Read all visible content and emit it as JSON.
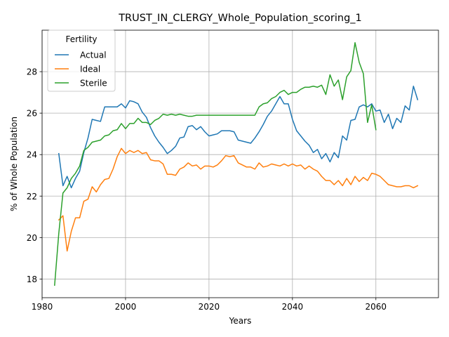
{
  "chart_data": {
    "type": "line",
    "title": "TRUST_IN_CLERGY_Whole_Population_scoring_1",
    "xlabel": "Years",
    "ylabel": "% of Whole Population",
    "xlim": [
      1980,
      2075
    ],
    "ylim": [
      17.1,
      30.0
    ],
    "xticks": [
      1980,
      2000,
      2020,
      2040,
      2060
    ],
    "yticks": [
      18,
      20,
      22,
      24,
      26,
      28
    ],
    "grid": true,
    "legend": {
      "title": "Fertility",
      "placement": "top-left"
    },
    "series": [
      {
        "name": "Actual",
        "color": "#1f77b4",
        "points": [
          [
            1984,
            24.05
          ],
          [
            1985,
            22.5
          ],
          [
            1986,
            22.95
          ],
          [
            1987,
            22.4
          ],
          [
            1988,
            22.85
          ],
          [
            1989,
            23.2
          ],
          [
            1990,
            24.1
          ],
          [
            1991,
            24.8
          ],
          [
            1992,
            25.7
          ],
          [
            1993,
            25.65
          ],
          [
            1994,
            25.6
          ],
          [
            1995,
            26.3
          ],
          [
            1996,
            26.3
          ],
          [
            1997,
            26.3
          ],
          [
            1998,
            26.3
          ],
          [
            1999,
            26.45
          ],
          [
            2000,
            26.25
          ],
          [
            2001,
            26.6
          ],
          [
            2002,
            26.55
          ],
          [
            2003,
            26.45
          ],
          [
            2004,
            26.05
          ],
          [
            2005,
            25.8
          ],
          [
            2006,
            25.3
          ],
          [
            2007,
            24.9
          ],
          [
            2008,
            24.6
          ],
          [
            2009,
            24.35
          ],
          [
            2010,
            24.05
          ],
          [
            2011,
            24.2
          ],
          [
            2012,
            24.4
          ],
          [
            2013,
            24.8
          ],
          [
            2014,
            24.85
          ],
          [
            2015,
            25.35
          ],
          [
            2016,
            25.4
          ],
          [
            2017,
            25.2
          ],
          [
            2018,
            25.35
          ],
          [
            2019,
            25.1
          ],
          [
            2020,
            24.9
          ],
          [
            2021,
            24.95
          ],
          [
            2022,
            25.0
          ],
          [
            2023,
            25.15
          ],
          [
            2024,
            25.15
          ],
          [
            2025,
            25.15
          ],
          [
            2026,
            25.1
          ],
          [
            2027,
            24.7
          ],
          [
            2028,
            24.65
          ],
          [
            2029,
            24.6
          ],
          [
            2030,
            24.55
          ],
          [
            2031,
            24.8
          ],
          [
            2032,
            25.1
          ],
          [
            2033,
            25.45
          ],
          [
            2034,
            25.85
          ],
          [
            2035,
            26.1
          ],
          [
            2036,
            26.45
          ],
          [
            2037,
            26.8
          ],
          [
            2038,
            26.45
          ],
          [
            2039,
            26.45
          ],
          [
            2040,
            25.7
          ],
          [
            2041,
            25.15
          ],
          [
            2042,
            24.9
          ],
          [
            2043,
            24.65
          ],
          [
            2044,
            24.45
          ],
          [
            2045,
            24.1
          ],
          [
            2046,
            24.25
          ],
          [
            2047,
            23.8
          ],
          [
            2048,
            24.05
          ],
          [
            2049,
            23.65
          ],
          [
            2050,
            24.1
          ],
          [
            2051,
            23.85
          ],
          [
            2052,
            24.9
          ],
          [
            2053,
            24.7
          ],
          [
            2054,
            25.65
          ],
          [
            2055,
            25.7
          ],
          [
            2056,
            26.3
          ],
          [
            2057,
            26.4
          ],
          [
            2058,
            26.3
          ],
          [
            2059,
            26.45
          ],
          [
            2060,
            26.1
          ],
          [
            2061,
            26.15
          ],
          [
            2062,
            25.55
          ],
          [
            2063,
            25.95
          ],
          [
            2064,
            25.25
          ],
          [
            2065,
            25.75
          ],
          [
            2066,
            25.55
          ],
          [
            2067,
            26.35
          ],
          [
            2068,
            26.15
          ],
          [
            2069,
            27.3
          ],
          [
            2070,
            26.65
          ]
        ]
      },
      {
        "name": "Ideal",
        "color": "#ff7f0e",
        "points": [
          [
            1984,
            20.85
          ],
          [
            1985,
            21.05
          ],
          [
            1986,
            19.35
          ],
          [
            1987,
            20.3
          ],
          [
            1988,
            20.95
          ],
          [
            1989,
            20.95
          ],
          [
            1990,
            21.75
          ],
          [
            1991,
            21.85
          ],
          [
            1992,
            22.45
          ],
          [
            1993,
            22.2
          ],
          [
            1994,
            22.55
          ],
          [
            1995,
            22.8
          ],
          [
            1996,
            22.85
          ],
          [
            1997,
            23.3
          ],
          [
            1998,
            23.9
          ],
          [
            1999,
            24.3
          ],
          [
            2000,
            24.05
          ],
          [
            2001,
            24.2
          ],
          [
            2002,
            24.1
          ],
          [
            2003,
            24.2
          ],
          [
            2004,
            24.05
          ],
          [
            2005,
            24.1
          ],
          [
            2006,
            23.75
          ],
          [
            2007,
            23.7
          ],
          [
            2008,
            23.7
          ],
          [
            2009,
            23.55
          ],
          [
            2010,
            23.05
          ],
          [
            2011,
            23.05
          ],
          [
            2012,
            23.0
          ],
          [
            2013,
            23.3
          ],
          [
            2014,
            23.4
          ],
          [
            2015,
            23.6
          ],
          [
            2016,
            23.45
          ],
          [
            2017,
            23.5
          ],
          [
            2018,
            23.3
          ],
          [
            2019,
            23.45
          ],
          [
            2020,
            23.45
          ],
          [
            2021,
            23.4
          ],
          [
            2022,
            23.5
          ],
          [
            2023,
            23.7
          ],
          [
            2024,
            23.95
          ],
          [
            2025,
            23.9
          ],
          [
            2026,
            23.95
          ],
          [
            2027,
            23.6
          ],
          [
            2028,
            23.5
          ],
          [
            2029,
            23.4
          ],
          [
            2030,
            23.4
          ],
          [
            2031,
            23.3
          ],
          [
            2032,
            23.6
          ],
          [
            2033,
            23.4
          ],
          [
            2034,
            23.45
          ],
          [
            2035,
            23.55
          ],
          [
            2036,
            23.5
          ],
          [
            2037,
            23.45
          ],
          [
            2038,
            23.55
          ],
          [
            2039,
            23.45
          ],
          [
            2040,
            23.55
          ],
          [
            2041,
            23.45
          ],
          [
            2042,
            23.5
          ],
          [
            2043,
            23.3
          ],
          [
            2044,
            23.45
          ],
          [
            2045,
            23.3
          ],
          [
            2046,
            23.2
          ],
          [
            2047,
            22.95
          ],
          [
            2048,
            22.75
          ],
          [
            2049,
            22.75
          ],
          [
            2050,
            22.55
          ],
          [
            2051,
            22.75
          ],
          [
            2052,
            22.5
          ],
          [
            2053,
            22.85
          ],
          [
            2054,
            22.55
          ],
          [
            2055,
            22.95
          ],
          [
            2056,
            22.7
          ],
          [
            2057,
            22.9
          ],
          [
            2058,
            22.75
          ],
          [
            2059,
            23.1
          ],
          [
            2060,
            23.05
          ],
          [
            2061,
            22.95
          ],
          [
            2062,
            22.75
          ],
          [
            2063,
            22.55
          ],
          [
            2064,
            22.5
          ],
          [
            2065,
            22.45
          ],
          [
            2066,
            22.45
          ],
          [
            2067,
            22.5
          ],
          [
            2068,
            22.5
          ],
          [
            2069,
            22.4
          ],
          [
            2070,
            22.5
          ]
        ]
      },
      {
        "name": "Sterile",
        "color": "#2ca02c",
        "points": [
          [
            1983,
            17.7
          ],
          [
            1984,
            20.2
          ],
          [
            1985,
            22.15
          ],
          [
            1986,
            22.4
          ],
          [
            1987,
            22.85
          ],
          [
            1988,
            23.1
          ],
          [
            1989,
            23.45
          ],
          [
            1990,
            24.2
          ],
          [
            1991,
            24.35
          ],
          [
            1992,
            24.6
          ],
          [
            1993,
            24.65
          ],
          [
            1994,
            24.7
          ],
          [
            1995,
            24.9
          ],
          [
            1996,
            24.95
          ],
          [
            1997,
            25.15
          ],
          [
            1998,
            25.2
          ],
          [
            1999,
            25.5
          ],
          [
            2000,
            25.25
          ],
          [
            2001,
            25.5
          ],
          [
            2002,
            25.5
          ],
          [
            2003,
            25.75
          ],
          [
            2004,
            25.55
          ],
          [
            2005,
            25.55
          ],
          [
            2006,
            25.45
          ],
          [
            2007,
            25.65
          ],
          [
            2008,
            25.75
          ],
          [
            2009,
            25.95
          ],
          [
            2010,
            25.9
          ],
          [
            2011,
            25.95
          ],
          [
            2012,
            25.9
          ],
          [
            2013,
            25.95
          ],
          [
            2014,
            25.9
          ],
          [
            2015,
            25.85
          ],
          [
            2016,
            25.85
          ],
          [
            2017,
            25.9
          ],
          [
            2018,
            25.9
          ],
          [
            2019,
            25.9
          ],
          [
            2020,
            25.9
          ],
          [
            2021,
            25.9
          ],
          [
            2022,
            25.9
          ],
          [
            2023,
            25.9
          ],
          [
            2024,
            25.9
          ],
          [
            2025,
            25.9
          ],
          [
            2026,
            25.9
          ],
          [
            2027,
            25.9
          ],
          [
            2028,
            25.9
          ],
          [
            2029,
            25.9
          ],
          [
            2030,
            25.9
          ],
          [
            2031,
            25.9
          ],
          [
            2032,
            26.3
          ],
          [
            2033,
            26.45
          ],
          [
            2034,
            26.5
          ],
          [
            2035,
            26.7
          ],
          [
            2036,
            26.8
          ],
          [
            2037,
            27.0
          ],
          [
            2038,
            27.1
          ],
          [
            2039,
            26.9
          ],
          [
            2040,
            27.0
          ],
          [
            2041,
            27.0
          ],
          [
            2042,
            27.15
          ],
          [
            2043,
            27.25
          ],
          [
            2044,
            27.25
          ],
          [
            2045,
            27.3
          ],
          [
            2046,
            27.25
          ],
          [
            2047,
            27.35
          ],
          [
            2048,
            26.9
          ],
          [
            2049,
            27.85
          ],
          [
            2050,
            27.3
          ],
          [
            2051,
            27.6
          ],
          [
            2052,
            26.65
          ],
          [
            2053,
            27.75
          ],
          [
            2054,
            28.05
          ],
          [
            2055,
            29.4
          ],
          [
            2056,
            28.45
          ],
          [
            2057,
            27.9
          ],
          [
            2058,
            25.55
          ],
          [
            2059,
            26.4
          ],
          [
            2060,
            25.2
          ]
        ]
      }
    ]
  }
}
